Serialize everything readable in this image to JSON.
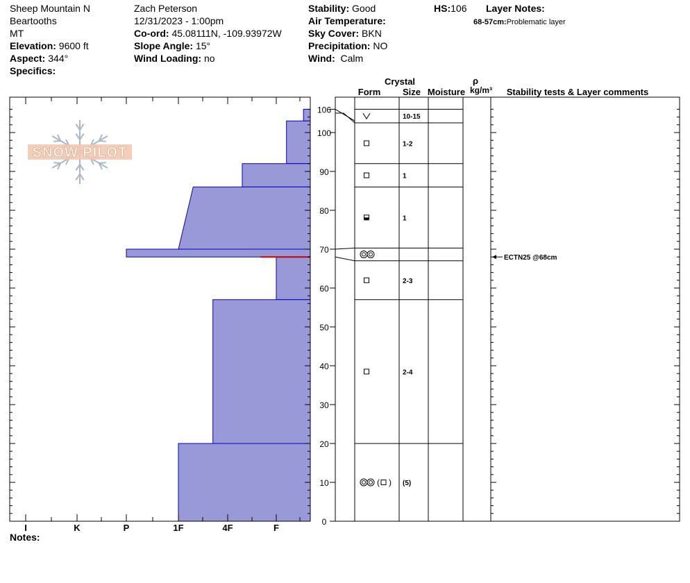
{
  "header": {
    "location": "Sheep Mountain N",
    "range": "Beartooths",
    "state": "MT",
    "elevation": {
      "label": "Elevation:",
      "value": "9600 ft"
    },
    "aspect": {
      "label": "Aspect:",
      "value": "344°"
    },
    "specifics": {
      "label": "Specifics:",
      "value": ""
    },
    "observer": "Zach Peterson",
    "datetime": "12/31/2023 - 1:00pm",
    "coord": {
      "label": "Co-ord:",
      "value": "45.08111N, -109.93972W"
    },
    "slope": {
      "label": "Slope Angle:",
      "value": "15°"
    },
    "wind_loading": {
      "label": "Wind Loading:",
      "value": "no"
    },
    "stability": {
      "label": "Stability:",
      "value": "Good"
    },
    "air_temp": {
      "label": "Air Temperature:",
      "value": ""
    },
    "sky_cover": {
      "label": "Sky Cover:",
      "value": "BKN"
    },
    "precipitation": {
      "label": "Precipitation:",
      "value": "NO"
    },
    "wind": {
      "label": "Wind:",
      "value": "Calm"
    },
    "hs": {
      "label": "HS:",
      "value": "106"
    },
    "layer_notes": {
      "label": "Layer Notes:",
      "range": "68-57cm:",
      "text": "Problematic layer"
    }
  },
  "logo": {
    "text": "SNOW PILOT"
  },
  "columns": {
    "crystal": "Crystal",
    "form": "Form",
    "size": "Size",
    "moisture": "Moisture",
    "rho": "ρ",
    "density_unit": "kg/m³",
    "comments": "Stability tests & Layer comments"
  },
  "notes_label": "Notes:",
  "colors": {
    "hardness_fill": "#9999d8",
    "hardness_edge": "#0000c0",
    "problem_line": "#cc0000"
  },
  "chart_data": {
    "type": "snow-profile",
    "y_axis": {
      "label": "cm",
      "range": [
        0,
        106
      ],
      "ticks": [
        0,
        10,
        20,
        30,
        40,
        50,
        60,
        70,
        80,
        90,
        100,
        106
      ]
    },
    "x_axis": {
      "categories": [
        "I",
        "K",
        "P",
        "1F",
        "4F",
        "F"
      ],
      "reversed": true
    },
    "layers": [
      {
        "top": 106,
        "bottom": 103,
        "hardness_top": 0.2,
        "hardness_bottom": 0.2,
        "form": "facet-v",
        "size": "10-15"
      },
      {
        "top": 103,
        "bottom": 92,
        "hardness_top": 0.7,
        "hardness_bottom": 0.7,
        "form": "square",
        "size": "1-2"
      },
      {
        "top": 92,
        "bottom": 86,
        "hardness_top": 1.7,
        "hardness_bottom": 1.7,
        "form": "square",
        "size": "1"
      },
      {
        "top": 86,
        "bottom": 70,
        "hardness_top": 2.7,
        "hardness_bottom": 3.0,
        "form": "rounding-facet",
        "size": "1"
      },
      {
        "top": 70,
        "bottom": 68,
        "hardness_top": 4.0,
        "hardness_bottom": 4.0,
        "form": "surface-hoar",
        "size": ""
      },
      {
        "top": 68,
        "bottom": 57,
        "hardness_top": 1.0,
        "hardness_bottom": 1.0,
        "form": "square",
        "size": "2-3"
      },
      {
        "top": 57,
        "bottom": 20,
        "hardness_top": 2.3,
        "hardness_bottom": 2.3,
        "form": "square",
        "size": "2-4"
      },
      {
        "top": 20,
        "bottom": 0,
        "hardness_top": 3.0,
        "hardness_bottom": 3.0,
        "form": "depth-hoar-mix",
        "size": "(5)"
      }
    ],
    "problem_layer_cm": 68,
    "stability_tests": [
      {
        "depth": 68,
        "text": "ECTN25 @68cm"
      }
    ]
  }
}
